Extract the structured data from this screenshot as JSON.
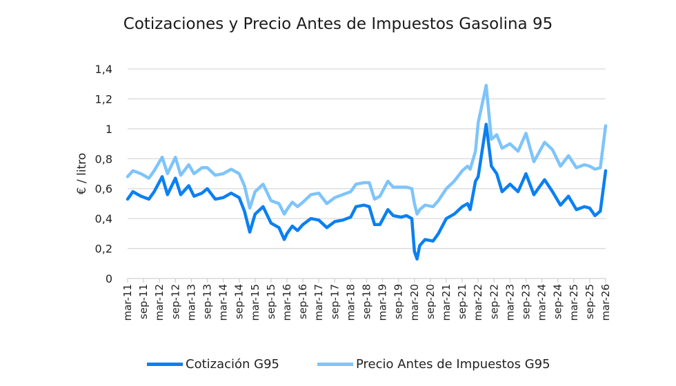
{
  "chart_data": {
    "type": "line",
    "title": "Cotizaciones y Precio Antes de Impuestos Gasolina 95",
    "xlabel": "",
    "ylabel": "€ / litro",
    "ylim": [
      0,
      1.4
    ],
    "yticks": [
      "0",
      "0,2",
      "0,4",
      "0,6",
      "0,8",
      "1",
      "1,2",
      "1,4"
    ],
    "ytick_values": [
      0,
      0.2,
      0.4,
      0.6,
      0.8,
      1.0,
      1.2,
      1.4
    ],
    "xticks": [
      "mar-11",
      "sep-11",
      "mar-12",
      "sep-12",
      "mar-13",
      "sep-13",
      "mar-14",
      "sep-14",
      "mar-15",
      "sep-15",
      "mar-16",
      "sep-16",
      "mar-17",
      "sep-17",
      "mar-18",
      "sep-18",
      "mar-19",
      "sep-19",
      "mar-20",
      "sep-20",
      "mar-21",
      "sep-21",
      "mar-22",
      "sep-22",
      "mar-23",
      "sep-23",
      "mar-24",
      "sep-24",
      "mar-25",
      "sep-25",
      "mar-26"
    ],
    "grid": true,
    "legend_position": "bottom",
    "x": [
      "2011-03",
      "2011-05",
      "2011-08",
      "2011-11",
      "2012-01",
      "2012-04",
      "2012-06",
      "2012-09",
      "2012-11",
      "2013-02",
      "2013-04",
      "2013-07",
      "2013-09",
      "2013-12",
      "2014-03",
      "2014-06",
      "2014-09",
      "2014-11",
      "2015-01",
      "2015-03",
      "2015-06",
      "2015-09",
      "2015-12",
      "2016-02",
      "2016-03",
      "2016-05",
      "2016-07",
      "2016-09",
      "2016-12",
      "2017-03",
      "2017-06",
      "2017-09",
      "2017-12",
      "2018-03",
      "2018-05",
      "2018-08",
      "2018-10",
      "2018-12",
      "2019-02",
      "2019-05",
      "2019-07",
      "2019-10",
      "2019-12",
      "2020-02",
      "2020-03",
      "2020-04",
      "2020-05",
      "2020-07",
      "2020-10",
      "2020-12",
      "2021-03",
      "2021-06",
      "2021-09",
      "2021-11",
      "2021-12",
      "2022-02",
      "2022-03",
      "2022-06",
      "2022-08",
      "2022-10",
      "2022-12",
      "2023-03",
      "2023-06",
      "2023-09",
      "2023-12",
      "2024-04",
      "2024-07",
      "2024-10",
      "2025-01",
      "2025-04",
      "2025-07",
      "2025-09",
      "2025-11",
      "2026-01",
      "2026-03"
    ],
    "series": [
      {
        "name": "Cotización G95",
        "color": "#0a80f2",
        "values": [
          0.53,
          0.58,
          0.55,
          0.53,
          0.58,
          0.68,
          0.56,
          0.67,
          0.56,
          0.62,
          0.55,
          0.57,
          0.6,
          0.53,
          0.54,
          0.57,
          0.54,
          0.45,
          0.31,
          0.43,
          0.48,
          0.37,
          0.34,
          0.26,
          0.3,
          0.35,
          0.32,
          0.36,
          0.4,
          0.39,
          0.34,
          0.38,
          0.39,
          0.41,
          0.48,
          0.49,
          0.48,
          0.36,
          0.36,
          0.46,
          0.42,
          0.41,
          0.42,
          0.4,
          0.18,
          0.13,
          0.22,
          0.26,
          0.25,
          0.3,
          0.4,
          0.43,
          0.48,
          0.5,
          0.46,
          0.65,
          0.68,
          1.03,
          0.75,
          0.7,
          0.58,
          0.63,
          0.58,
          0.7,
          0.56,
          0.66,
          0.58,
          0.49,
          0.55,
          0.46,
          0.48,
          0.47,
          0.42,
          0.45,
          0.72
        ]
      },
      {
        "name": "Precio Antes de Impuestos G95",
        "color": "#7ec4fb",
        "values": [
          0.68,
          0.72,
          0.7,
          0.67,
          0.72,
          0.81,
          0.7,
          0.81,
          0.69,
          0.76,
          0.7,
          0.74,
          0.74,
          0.69,
          0.7,
          0.73,
          0.7,
          0.62,
          0.47,
          0.58,
          0.63,
          0.52,
          0.5,
          0.43,
          0.46,
          0.51,
          0.48,
          0.51,
          0.56,
          0.57,
          0.5,
          0.54,
          0.56,
          0.58,
          0.63,
          0.64,
          0.64,
          0.53,
          0.55,
          0.65,
          0.61,
          0.61,
          0.61,
          0.6,
          0.5,
          0.43,
          0.46,
          0.49,
          0.48,
          0.52,
          0.6,
          0.65,
          0.72,
          0.75,
          0.73,
          0.85,
          1.04,
          1.29,
          0.93,
          0.96,
          0.87,
          0.9,
          0.85,
          0.97,
          0.78,
          0.91,
          0.86,
          0.75,
          0.82,
          0.74,
          0.76,
          0.75,
          0.73,
          0.74,
          1.02
        ]
      }
    ]
  }
}
